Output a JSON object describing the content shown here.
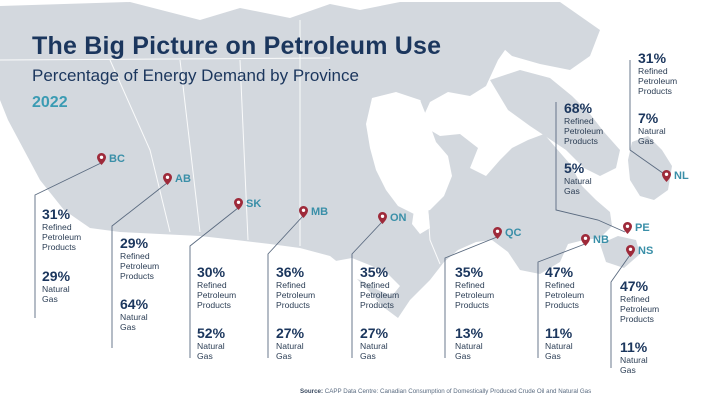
{
  "header": {
    "title": "The Big Picture on Petroleum Use",
    "subtitle": "Percentage of Energy Demand by Province",
    "year": "2022"
  },
  "colors": {
    "title": "#1b365d",
    "accent": "#3a9bb3",
    "pin": "#9e2a3a",
    "land": "#d3d8de",
    "water": "#ffffff",
    "leader_line": "#5b6b80"
  },
  "icons": {
    "pin": "map-pin-icon"
  },
  "provinces": [
    {
      "code": "BC",
      "refined_pct": "31%",
      "refined_label_1": "Refined",
      "refined_label_2": "Petroleum",
      "refined_label_3": "Products",
      "gas_pct": "29%",
      "gas_label_1": "Natural",
      "gas_label_2": "Gas"
    },
    {
      "code": "AB",
      "refined_pct": "29%",
      "refined_label_1": "Refined",
      "refined_label_2": "Petroleum",
      "refined_label_3": "Products",
      "gas_pct": "64%",
      "gas_label_1": "Natural",
      "gas_label_2": "Gas"
    },
    {
      "code": "SK",
      "refined_pct": "30%",
      "refined_label_1": "Refined",
      "refined_label_2": "Petroleum",
      "refined_label_3": "Products",
      "gas_pct": "52%",
      "gas_label_1": "Natural",
      "gas_label_2": "Gas"
    },
    {
      "code": "MB",
      "refined_pct": "36%",
      "refined_label_1": "Refined",
      "refined_label_2": "Petroleum",
      "refined_label_3": "Products",
      "gas_pct": "27%",
      "gas_label_1": "Natural",
      "gas_label_2": "Gas"
    },
    {
      "code": "ON",
      "refined_pct": "35%",
      "refined_label_1": "Refined",
      "refined_label_2": "Petroleum",
      "refined_label_3": "Products",
      "gas_pct": "27%",
      "gas_label_1": "Natural",
      "gas_label_2": "Gas"
    },
    {
      "code": "QC",
      "refined_pct": "35%",
      "refined_label_1": "Refined",
      "refined_label_2": "Petroleum",
      "refined_label_3": "Products",
      "gas_pct": "13%",
      "gas_label_1": "Natural",
      "gas_label_2": "Gas"
    },
    {
      "code": "NB",
      "refined_pct": "47%",
      "refined_label_1": "Refined",
      "refined_label_2": "Petroleum",
      "refined_label_3": "Products",
      "gas_pct": "11%",
      "gas_label_1": "Natural",
      "gas_label_2": "Gas"
    },
    {
      "code": "NS",
      "refined_pct": "47%",
      "refined_label_1": "Refined",
      "refined_label_2": "Petroleum",
      "refined_label_3": "Products",
      "gas_pct": "11%",
      "gas_label_1": "Natural",
      "gas_label_2": "Gas"
    },
    {
      "code": "PE",
      "refined_pct": "68%",
      "refined_label_1": "Refined",
      "refined_label_2": "Petroleum",
      "refined_label_3": "Products",
      "gas_pct": "5%",
      "gas_label_1": "Natural",
      "gas_label_2": "Gas"
    },
    {
      "code": "NL",
      "refined_pct": "31%",
      "refined_label_1": "Refined",
      "refined_label_2": "Petroleum",
      "refined_label_3": "Products",
      "gas_pct": "7%",
      "gas_label_1": "Natural",
      "gas_label_2": "Gas"
    }
  ],
  "source": {
    "label": "Source:",
    "text": "CAPP Data Centre: Canadian Consumption of Domestically Produced Crude Oil and Natural Gas"
  }
}
